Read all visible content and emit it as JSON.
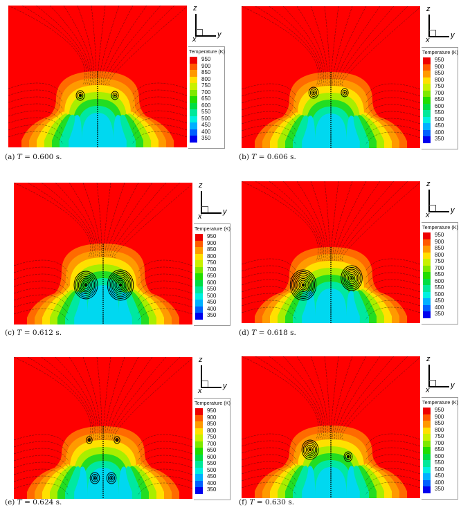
{
  "figure": {
    "legend_title": "Temperature (K)",
    "axis_labels": {
      "z": "z",
      "y": "y",
      "x": "x"
    },
    "colorbar": {
      "levels": [
        "950",
        "900",
        "850",
        "800",
        "750",
        "700",
        "650",
        "600",
        "550",
        "500",
        "450",
        "400",
        "350"
      ],
      "colors": [
        "#ee0000",
        "#ff5a00",
        "#ff9900",
        "#ffe000",
        "#c8f000",
        "#7ee800",
        "#22dd00",
        "#00dd44",
        "#00e89a",
        "#00f0e0",
        "#00b0ff",
        "#0060ff",
        "#0000ee"
      ]
    },
    "panels": [
      {
        "id": "a",
        "label": "(a)",
        "var": "T",
        "eq": "= 0.600 s.",
        "time_s": 0.6
      },
      {
        "id": "b",
        "label": "(b)",
        "var": "T",
        "eq": "= 0.606 s.",
        "time_s": 0.606
      },
      {
        "id": "c",
        "label": "(c)",
        "var": "T",
        "eq": "= 0.612 s.",
        "time_s": 0.612
      },
      {
        "id": "d",
        "label": "(d)",
        "var": "T",
        "eq": "= 0.618 s.",
        "time_s": 0.618
      },
      {
        "id": "e",
        "label": "(e)",
        "var": "T",
        "eq": "= 0.624 s.",
        "time_s": 0.624
      },
      {
        "id": "f",
        "label": "(f)",
        "var": "T",
        "eq": "= 0.630 s.",
        "time_s": 0.63
      }
    ]
  }
}
